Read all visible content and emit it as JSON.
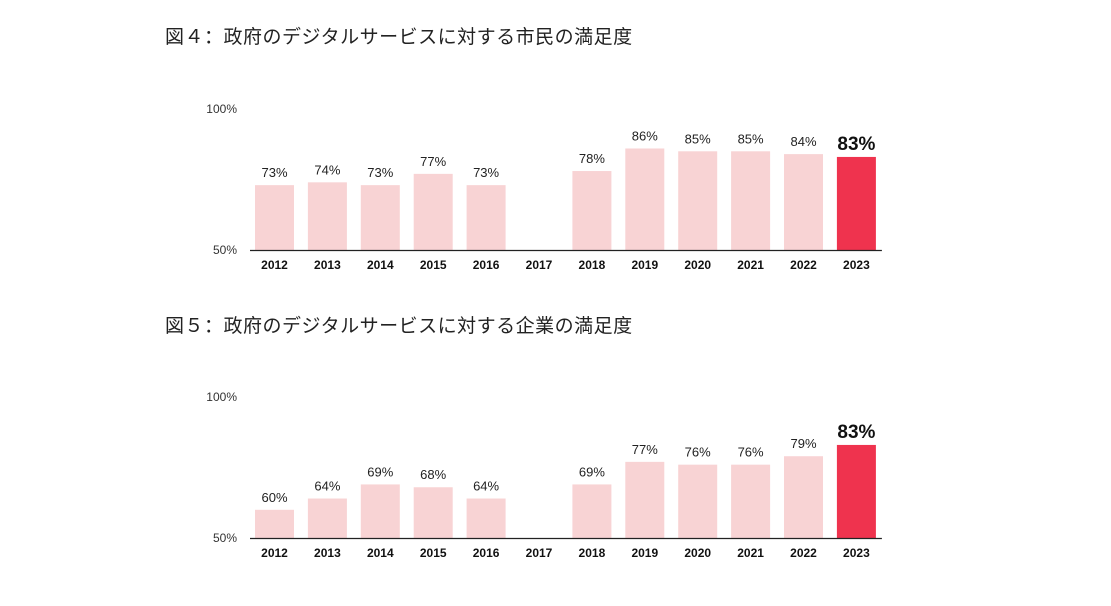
{
  "colors": {
    "bar": "#f8d3d4",
    "highlight": "#ef334e",
    "axis": "#222222"
  },
  "chart_data": [
    {
      "type": "bar",
      "title": "図４：政府のデジタルサービスに対する市民の満足度",
      "categories": [
        "2012",
        "2013",
        "2014",
        "2015",
        "2016",
        "2017",
        "2018",
        "2019",
        "2020",
        "2021",
        "2022",
        "2023"
      ],
      "values": [
        73,
        74,
        73,
        77,
        73,
        null,
        78,
        86,
        85,
        85,
        84,
        83
      ],
      "value_labels": [
        "73%",
        "74%",
        "73%",
        "77%",
        "73%",
        "",
        "78%",
        "86%",
        "85%",
        "85%",
        "84%",
        "83%"
      ],
      "highlight_index": 11,
      "ylim": [
        50,
        100
      ],
      "yticks": [
        "50%",
        "100%"
      ],
      "grid": false
    },
    {
      "type": "bar",
      "title": "図５：政府のデジタルサービスに対する企業の満足度",
      "categories": [
        "2012",
        "2013",
        "2014",
        "2015",
        "2016",
        "2017",
        "2018",
        "2019",
        "2020",
        "2021",
        "2022",
        "2023"
      ],
      "values": [
        60,
        64,
        69,
        68,
        64,
        null,
        69,
        77,
        76,
        76,
        79,
        83
      ],
      "value_labels": [
        "60%",
        "64%",
        "69%",
        "68%",
        "64%",
        "",
        "69%",
        "77%",
        "76%",
        "76%",
        "79%",
        "83%"
      ],
      "highlight_index": 11,
      "ylim": [
        50,
        100
      ],
      "yticks": [
        "50%",
        "100%"
      ],
      "grid": false
    }
  ]
}
